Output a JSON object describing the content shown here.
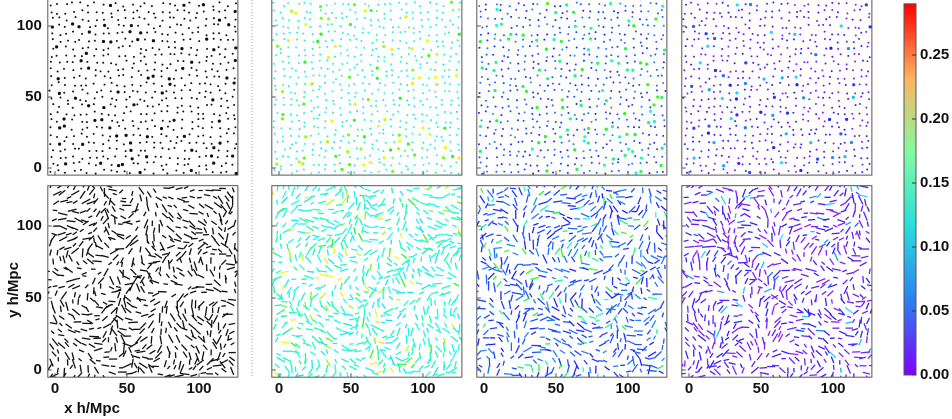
{
  "chart_data": {
    "type": "quiver",
    "xlabel": "x h/Mpc",
    "ylabel": "y h/Mpc",
    "xlim": [
      -5,
      127
    ],
    "ylim": [
      -5,
      128
    ],
    "xticks": [
      0,
      50,
      100
    ],
    "yticks": [
      0,
      50,
      100
    ],
    "colorbar": {
      "lim": [
        0,
        0.29
      ],
      "ticks": [
        {
          "value": 0,
          "label": "0.00"
        },
        0.05,
        {
          "value": 0.1,
          "label": "0.10"
        },
        0.15,
        {
          "value": 0.2,
          "label": "0.20"
        },
        0.25
      ]
    }
  }
}
